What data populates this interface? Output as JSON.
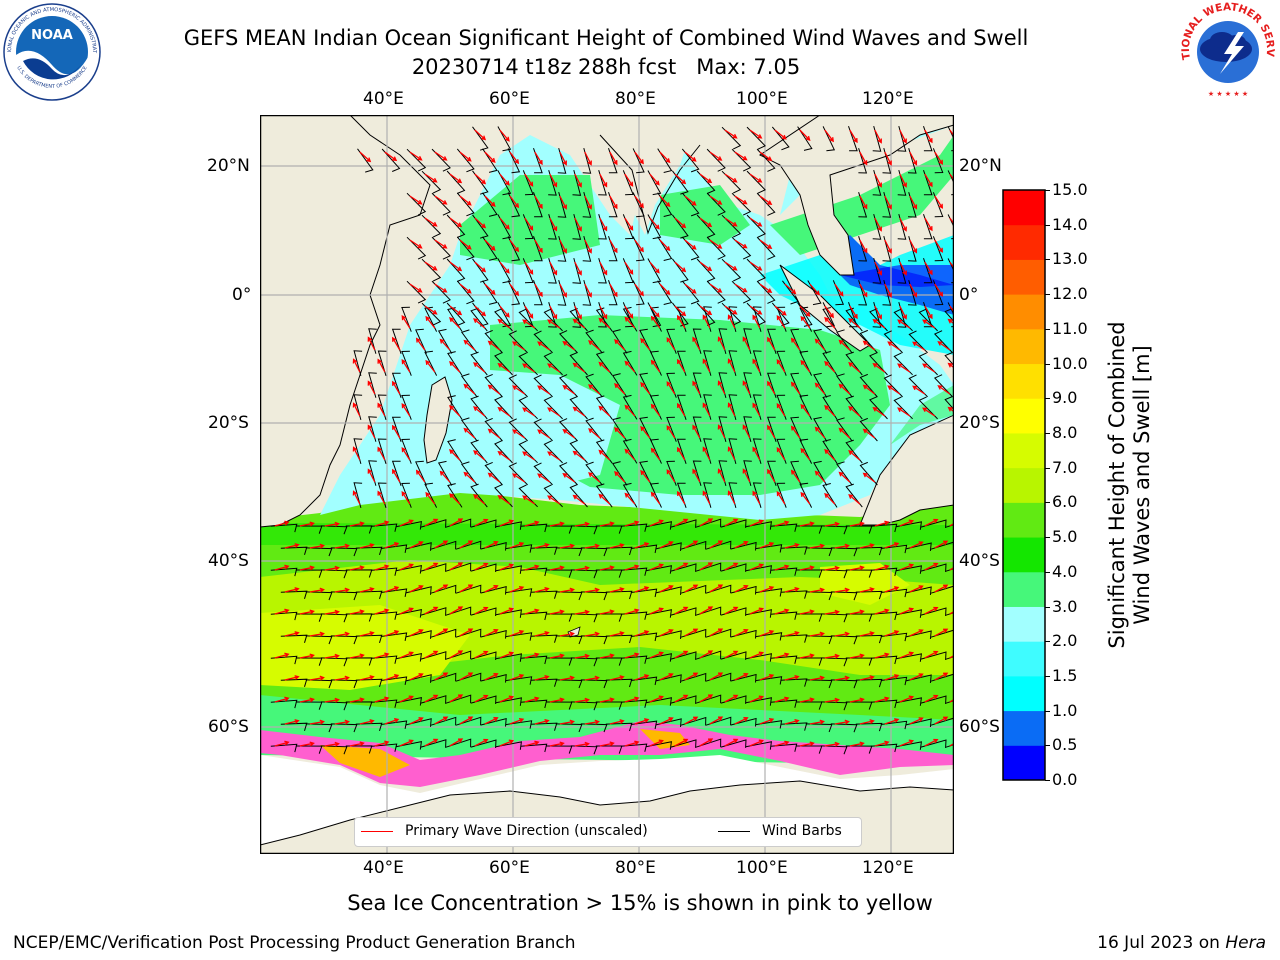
{
  "header": {
    "title": "GEFS MEAN Indian Ocean Significant Height of Combined Wind Waves and Swell",
    "run": "20230714 t18z 288h fcst",
    "max": "Max: 7.05"
  },
  "logos": {
    "left": {
      "name": "NOAA",
      "ring_text": "NATIONAL OCEANIC AND ATMOSPHERIC ADMINISTRATION",
      "bottom_text": "U.S. DEPARTMENT OF COMMERCE"
    },
    "right": {
      "ring_text": "NATIONAL WEATHER SERVICE"
    }
  },
  "map": {
    "lon_labels": [
      "40°E",
      "60°E",
      "80°E",
      "100°E",
      "120°E"
    ],
    "lat_labels": [
      "20°N",
      "0°",
      "20°S",
      "40°S",
      "60°S"
    ],
    "lon_values": [
      40,
      60,
      80,
      100,
      120
    ],
    "lat_values": [
      20,
      0,
      -20,
      -40,
      -60
    ],
    "extent": {
      "lon_min": 20,
      "lon_max": 130,
      "lat_min": -78,
      "lat_max": 28
    },
    "colors": {
      "land": "#efecdc",
      "ocean_missing": "#ffffff",
      "grid": "#b0b0b0",
      "wave_arrow": "#ff0000",
      "wind_barb": "#000000"
    }
  },
  "legend": {
    "wave": "Primary Wave Direction (unscaled)",
    "wind": "Wind Barbs"
  },
  "colorbar": {
    "title_line1": "Significant Height of Combined",
    "title_line2": "Wind Waves and Swell [m]",
    "ticks": [
      "0.0",
      "0.5",
      "1.0",
      "1.5",
      "2.0",
      "3.0",
      "4.0",
      "5.0",
      "6.0",
      "7.0",
      "8.0",
      "9.0",
      "10.0",
      "11.0",
      "12.0",
      "13.0",
      "14.0",
      "15.0"
    ],
    "colors": [
      "#0000ff",
      "#0a6cf5",
      "#00ffff",
      "#3ffcff",
      "#a2ffff",
      "#46f77a",
      "#14e600",
      "#61ea13",
      "#b8f500",
      "#d6fc00",
      "#ffff00",
      "#ffe000",
      "#ffb900",
      "#ff8d00",
      "#ff5d00",
      "#ff2a00",
      "#ff0000"
    ]
  },
  "footer": {
    "ice_note": "Sea Ice Concentration > 15% is shown in pink to yellow",
    "credit": "NCEP/EMC/Verification Post Processing Product Generation Branch",
    "date": "16 Jul 2023 on ",
    "host": "Hera"
  }
}
